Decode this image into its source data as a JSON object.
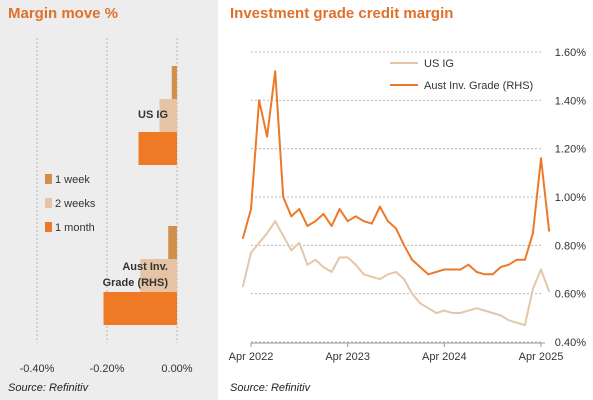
{
  "left_panel": {
    "title": "Margin move %",
    "source": "Source: Refinitiv"
  },
  "right_panel": {
    "title": "Investment grade credit margin",
    "source": "Source: Refinitiv"
  },
  "colors": {
    "title": "#e0702a",
    "week1": "#d08f4a",
    "weeks2": "#e6c3a5",
    "month1": "#ee7a26",
    "us_ig_line": "#e4c6a9",
    "aust_line": "#ea7a28",
    "panel_bg": "#ededed"
  },
  "chart_data": [
    {
      "type": "bar",
      "orientation": "horizontal",
      "title": "Margin move %",
      "categories": [
        "US IG",
        "Aust Inv. Grade (RHS)"
      ],
      "series": [
        {
          "name": "1 week",
          "values": [
            -0.015,
            -0.025
          ]
        },
        {
          "name": "2 weeks",
          "values": [
            -0.05,
            -0.105
          ]
        },
        {
          "name": "1 month",
          "values": [
            -0.11,
            -0.21
          ]
        }
      ],
      "xlim": [
        -0.5,
        0.0
      ],
      "xticks": [
        "-0.40%",
        "-0.20%",
        "0.00%"
      ],
      "xtick_values": [
        -0.4,
        -0.2,
        0.0
      ],
      "legend": [
        "1 week",
        "2 weeks",
        "1 month"
      ],
      "legend_position": "left-middle",
      "grid": "vertical"
    },
    {
      "type": "line",
      "title": "Investment grade credit margin",
      "x_ticks": [
        "Apr 2022",
        "Apr 2023",
        "Apr 2024",
        "Apr 2025"
      ],
      "x_tick_values": [
        "2022-04",
        "2023-04",
        "2024-04",
        "2025-04"
      ],
      "yticks": [
        "0.40%",
        "0.60%",
        "0.80%",
        "1.00%",
        "1.20%",
        "1.40%",
        "1.60%"
      ],
      "ylim": [
        0.4,
        1.6
      ],
      "yaxis_side": "right",
      "legend_position": "top-right",
      "grid": "horizontal",
      "series": [
        {
          "name": "US IG",
          "x": [
            "2022-03",
            "2022-04",
            "2022-05",
            "2022-06",
            "2022-07",
            "2022-08",
            "2022-09",
            "2022-10",
            "2022-11",
            "2022-12",
            "2023-01",
            "2023-02",
            "2023-03",
            "2023-04",
            "2023-05",
            "2023-06",
            "2023-07",
            "2023-08",
            "2023-09",
            "2023-10",
            "2023-11",
            "2023-12",
            "2024-01",
            "2024-02",
            "2024-03",
            "2024-04",
            "2024-05",
            "2024-06",
            "2024-07",
            "2024-08",
            "2024-09",
            "2024-10",
            "2024-11",
            "2024-12",
            "2025-01",
            "2025-02",
            "2025-03",
            "2025-04",
            "2025-05"
          ],
          "values": [
            0.63,
            0.77,
            0.81,
            0.85,
            0.9,
            0.84,
            0.78,
            0.81,
            0.72,
            0.74,
            0.71,
            0.69,
            0.75,
            0.75,
            0.72,
            0.68,
            0.67,
            0.66,
            0.68,
            0.69,
            0.66,
            0.6,
            0.56,
            0.54,
            0.52,
            0.53,
            0.52,
            0.52,
            0.53,
            0.54,
            0.53,
            0.52,
            0.51,
            0.49,
            0.48,
            0.47,
            0.62,
            0.7,
            0.61
          ]
        },
        {
          "name": "Aust Inv. Grade (RHS)",
          "x": [
            "2022-03",
            "2022-04",
            "2022-05",
            "2022-06",
            "2022-07",
            "2022-08",
            "2022-09",
            "2022-10",
            "2022-11",
            "2022-12",
            "2023-01",
            "2023-02",
            "2023-03",
            "2023-04",
            "2023-05",
            "2023-06",
            "2023-07",
            "2023-08",
            "2023-09",
            "2023-10",
            "2023-11",
            "2023-12",
            "2024-01",
            "2024-02",
            "2024-03",
            "2024-04",
            "2024-05",
            "2024-06",
            "2024-07",
            "2024-08",
            "2024-09",
            "2024-10",
            "2024-11",
            "2024-12",
            "2025-01",
            "2025-02",
            "2025-03",
            "2025-04",
            "2025-05"
          ],
          "values": [
            0.83,
            0.95,
            1.4,
            1.25,
            1.52,
            1.0,
            0.92,
            0.95,
            0.88,
            0.9,
            0.93,
            0.88,
            0.95,
            0.9,
            0.92,
            0.9,
            0.89,
            0.96,
            0.9,
            0.87,
            0.8,
            0.74,
            0.71,
            0.68,
            0.69,
            0.7,
            0.7,
            0.7,
            0.72,
            0.69,
            0.68,
            0.68,
            0.71,
            0.72,
            0.74,
            0.74,
            0.85,
            1.16,
            0.86
          ]
        }
      ]
    }
  ]
}
